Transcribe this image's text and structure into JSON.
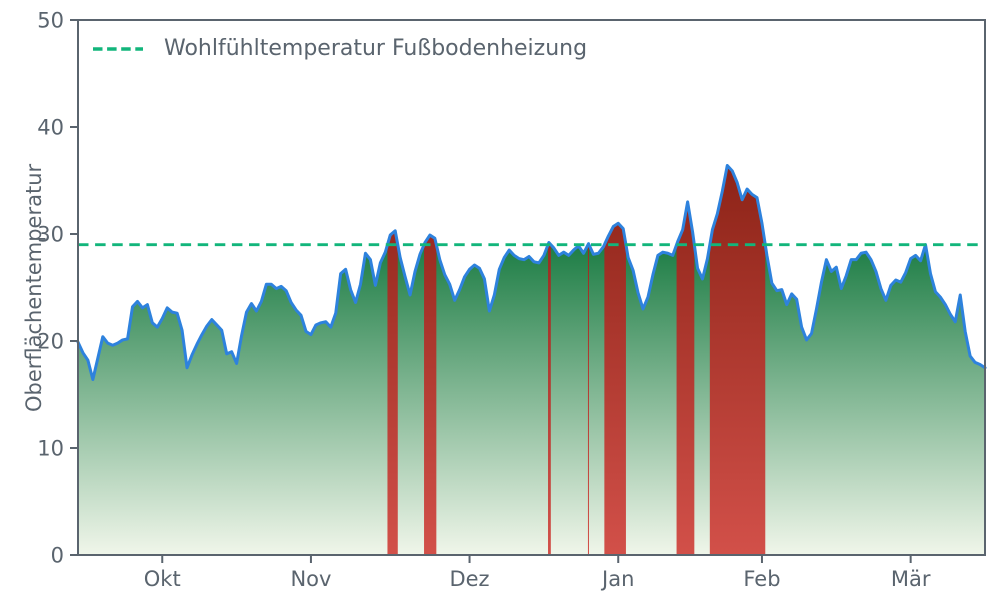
{
  "figure": {
    "ylabel": "Oberflächentemperatur",
    "legend_label": "Wohlfühltemperatur Fußbodenheizung"
  },
  "colors": {
    "line_blue": "#2e82dd",
    "threshold_green": "#12b57b",
    "area_green_top": "#1d7d45",
    "area_green_bottom": "#f0f6ea",
    "exceed_red_top": "#8c2317",
    "exceed_red_bottom": "#d25049",
    "axis_gray": "#5a646e"
  },
  "chart_data": {
    "type": "area",
    "title": "",
    "xlabel": "",
    "ylabel": "Oberflächentemperatur",
    "ylim": [
      0,
      50
    ],
    "yticks": [
      0,
      10,
      20,
      30,
      40,
      50
    ],
    "xtick_labels": [
      "Okt",
      "Nov",
      "Dez",
      "Jan",
      "Feb",
      "Mär"
    ],
    "xtick_day_indices": [
      17,
      47,
      79,
      109,
      138,
      168
    ],
    "grid": false,
    "legend_position": "upper left",
    "threshold": {
      "label": "Wohlfühltemperatur Fußbodenheizung",
      "value": 29,
      "style": "dashed"
    },
    "exceedance_rule": "days with Oberflächentemperatur above 29 are filled red from 0 up to the curve",
    "series": [
      {
        "name": "Oberflächentemperatur",
        "unit": "°C",
        "x_unit": "day (mid-September to mid-March, daily values)",
        "values": [
          19.9,
          18.9,
          18.2,
          16.4,
          18.4,
          20.4,
          19.8,
          19.6,
          19.8,
          20.1,
          20.2,
          23.2,
          23.7,
          23.1,
          23.4,
          21.7,
          21.3,
          22.1,
          23.1,
          22.7,
          22.6,
          21.0,
          17.5,
          18.7,
          19.7,
          20.6,
          21.4,
          22.0,
          21.5,
          21.0,
          18.8,
          19.0,
          17.9,
          20.5,
          22.7,
          23.5,
          22.8,
          23.7,
          25.3,
          25.3,
          24.9,
          25.1,
          24.7,
          23.6,
          22.9,
          22.4,
          20.9,
          20.6,
          21.5,
          21.7,
          21.8,
          21.3,
          22.6,
          26.3,
          26.7,
          24.8,
          23.6,
          25.3,
          28.2,
          27.6,
          25.2,
          27.3,
          28.3,
          29.9,
          30.3,
          27.8,
          26.0,
          24.3,
          26.5,
          28.1,
          29.2,
          29.9,
          29.6,
          27.6,
          26.2,
          25.3,
          23.8,
          24.8,
          26.0,
          26.7,
          27.1,
          26.8,
          25.8,
          22.8,
          24.3,
          26.7,
          27.8,
          28.5,
          28.0,
          27.7,
          27.6,
          27.9,
          27.4,
          27.3,
          28.0,
          29.2,
          28.7,
          28.0,
          28.3,
          28.0,
          28.5,
          28.9,
          28.2,
          29.1,
          28.1,
          28.2,
          28.8,
          29.8,
          30.7,
          31.0,
          30.5,
          27.8,
          26.6,
          24.5,
          23.0,
          24.1,
          26.2,
          28.0,
          28.3,
          28.2,
          28.0,
          29.3,
          30.4,
          33.0,
          30.2,
          26.8,
          25.8,
          27.7,
          30.4,
          31.9,
          34.0,
          36.4,
          35.9,
          34.8,
          33.2,
          34.2,
          33.7,
          33.4,
          31.0,
          28.0,
          25.4,
          24.7,
          24.8,
          23.4,
          24.4,
          23.9,
          21.3,
          20.1,
          20.7,
          23.0,
          25.5,
          27.6,
          26.5,
          26.9,
          24.9,
          26.1,
          27.6,
          27.6,
          28.2,
          28.3,
          27.6,
          26.5,
          24.9,
          23.8,
          25.2,
          25.7,
          25.5,
          26.4,
          27.7,
          28.0,
          27.5,
          29.0,
          26.3,
          24.6,
          24.1,
          23.4,
          22.5,
          21.8,
          24.3,
          20.9,
          18.6,
          18.0,
          17.8,
          17.5
        ]
      }
    ]
  }
}
